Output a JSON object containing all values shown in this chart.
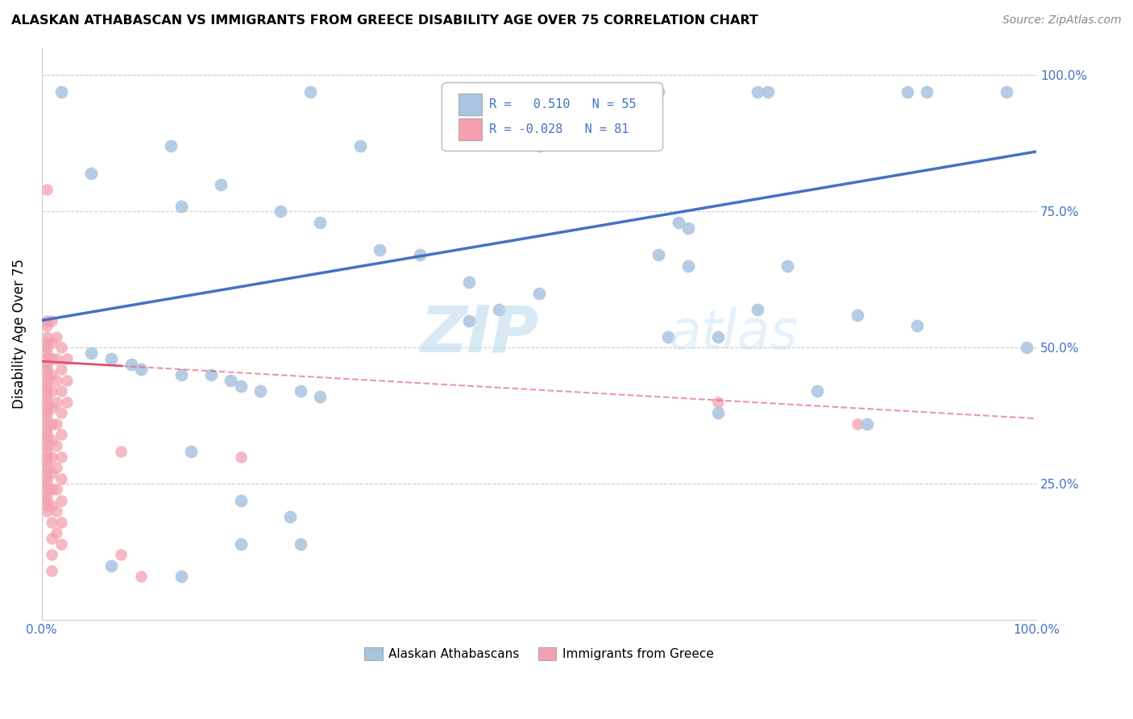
{
  "title": "ALASKAN ATHABASCAN VS IMMIGRANTS FROM GREECE DISABILITY AGE OVER 75 CORRELATION CHART",
  "source": "Source: ZipAtlas.com",
  "ylabel": "Disability Age Over 75",
  "xlim": [
    0.0,
    1.0
  ],
  "ylim": [
    0.0,
    1.05
  ],
  "legend1_R": "0.510",
  "legend1_N": "55",
  "legend2_R": "-0.028",
  "legend2_N": "81",
  "legend_label1": "Alaskan Athabascans",
  "legend_label2": "Immigrants from Greece",
  "blue_color": "#a8c4e0",
  "pink_color": "#f4a0b0",
  "blue_line_color": "#4472c4",
  "pink_line_color": "#e05070",
  "tick_color": "#4472c4",
  "grid_color": "#cccccc",
  "blue_scatter": [
    [
      0.02,
      0.97
    ],
    [
      0.27,
      0.97
    ],
    [
      0.6,
      0.97
    ],
    [
      0.62,
      0.97
    ],
    [
      0.72,
      0.97
    ],
    [
      0.73,
      0.97
    ],
    [
      0.87,
      0.97
    ],
    [
      0.89,
      0.97
    ],
    [
      0.97,
      0.97
    ],
    [
      0.13,
      0.87
    ],
    [
      0.32,
      0.87
    ],
    [
      0.5,
      0.87
    ],
    [
      0.05,
      0.82
    ],
    [
      0.18,
      0.8
    ],
    [
      0.14,
      0.76
    ],
    [
      0.24,
      0.75
    ],
    [
      0.28,
      0.73
    ],
    [
      0.64,
      0.73
    ],
    [
      0.65,
      0.72
    ],
    [
      0.34,
      0.68
    ],
    [
      0.38,
      0.67
    ],
    [
      0.62,
      0.67
    ],
    [
      0.65,
      0.65
    ],
    [
      0.75,
      0.65
    ],
    [
      0.43,
      0.62
    ],
    [
      0.5,
      0.6
    ],
    [
      0.46,
      0.57
    ],
    [
      0.72,
      0.57
    ],
    [
      0.82,
      0.56
    ],
    [
      0.43,
      0.55
    ],
    [
      0.88,
      0.54
    ],
    [
      0.63,
      0.52
    ],
    [
      0.68,
      0.52
    ],
    [
      0.99,
      0.5
    ],
    [
      0.05,
      0.49
    ],
    [
      0.07,
      0.48
    ],
    [
      0.09,
      0.47
    ],
    [
      0.1,
      0.46
    ],
    [
      0.14,
      0.45
    ],
    [
      0.17,
      0.45
    ],
    [
      0.19,
      0.44
    ],
    [
      0.2,
      0.43
    ],
    [
      0.22,
      0.42
    ],
    [
      0.26,
      0.42
    ],
    [
      0.28,
      0.41
    ],
    [
      0.78,
      0.42
    ],
    [
      0.15,
      0.31
    ],
    [
      0.2,
      0.22
    ],
    [
      0.25,
      0.19
    ],
    [
      0.68,
      0.38
    ],
    [
      0.83,
      0.36
    ],
    [
      0.2,
      0.14
    ],
    [
      0.26,
      0.14
    ],
    [
      0.07,
      0.1
    ],
    [
      0.14,
      0.08
    ]
  ],
  "pink_scatter": [
    [
      0.005,
      0.79
    ],
    [
      0.005,
      0.55
    ],
    [
      0.005,
      0.54
    ],
    [
      0.005,
      0.52
    ],
    [
      0.005,
      0.51
    ],
    [
      0.005,
      0.5
    ],
    [
      0.005,
      0.49
    ],
    [
      0.005,
      0.48
    ],
    [
      0.005,
      0.47
    ],
    [
      0.005,
      0.46
    ],
    [
      0.005,
      0.45
    ],
    [
      0.005,
      0.44
    ],
    [
      0.005,
      0.43
    ],
    [
      0.005,
      0.42
    ],
    [
      0.005,
      0.41
    ],
    [
      0.005,
      0.4
    ],
    [
      0.005,
      0.39
    ],
    [
      0.005,
      0.38
    ],
    [
      0.005,
      0.37
    ],
    [
      0.005,
      0.36
    ],
    [
      0.005,
      0.35
    ],
    [
      0.005,
      0.34
    ],
    [
      0.005,
      0.33
    ],
    [
      0.005,
      0.32
    ],
    [
      0.005,
      0.31
    ],
    [
      0.005,
      0.3
    ],
    [
      0.005,
      0.29
    ],
    [
      0.005,
      0.28
    ],
    [
      0.005,
      0.27
    ],
    [
      0.005,
      0.26
    ],
    [
      0.005,
      0.25
    ],
    [
      0.005,
      0.24
    ],
    [
      0.005,
      0.23
    ],
    [
      0.005,
      0.22
    ],
    [
      0.005,
      0.21
    ],
    [
      0.005,
      0.2
    ],
    [
      0.01,
      0.55
    ],
    [
      0.01,
      0.51
    ],
    [
      0.01,
      0.48
    ],
    [
      0.01,
      0.45
    ],
    [
      0.01,
      0.42
    ],
    [
      0.01,
      0.39
    ],
    [
      0.01,
      0.36
    ],
    [
      0.01,
      0.33
    ],
    [
      0.01,
      0.3
    ],
    [
      0.01,
      0.27
    ],
    [
      0.01,
      0.24
    ],
    [
      0.01,
      0.21
    ],
    [
      0.01,
      0.18
    ],
    [
      0.01,
      0.15
    ],
    [
      0.01,
      0.12
    ],
    [
      0.01,
      0.09
    ],
    [
      0.015,
      0.52
    ],
    [
      0.015,
      0.48
    ],
    [
      0.015,
      0.44
    ],
    [
      0.015,
      0.4
    ],
    [
      0.015,
      0.36
    ],
    [
      0.015,
      0.32
    ],
    [
      0.015,
      0.28
    ],
    [
      0.015,
      0.24
    ],
    [
      0.015,
      0.2
    ],
    [
      0.015,
      0.16
    ],
    [
      0.02,
      0.5
    ],
    [
      0.02,
      0.46
    ],
    [
      0.02,
      0.42
    ],
    [
      0.02,
      0.38
    ],
    [
      0.02,
      0.34
    ],
    [
      0.02,
      0.3
    ],
    [
      0.02,
      0.26
    ],
    [
      0.02,
      0.22
    ],
    [
      0.02,
      0.18
    ],
    [
      0.02,
      0.14
    ],
    [
      0.025,
      0.48
    ],
    [
      0.025,
      0.44
    ],
    [
      0.025,
      0.4
    ],
    [
      0.08,
      0.31
    ],
    [
      0.2,
      0.3
    ],
    [
      0.68,
      0.4
    ],
    [
      0.82,
      0.36
    ],
    [
      0.08,
      0.12
    ],
    [
      0.1,
      0.08
    ]
  ],
  "blue_line": [
    [
      0.0,
      0.55
    ],
    [
      1.0,
      0.86
    ]
  ],
  "pink_line": [
    [
      0.0,
      0.475
    ],
    [
      1.0,
      0.37
    ]
  ],
  "pink_line_dash": [
    0.08,
    1.0,
    0.37
  ]
}
